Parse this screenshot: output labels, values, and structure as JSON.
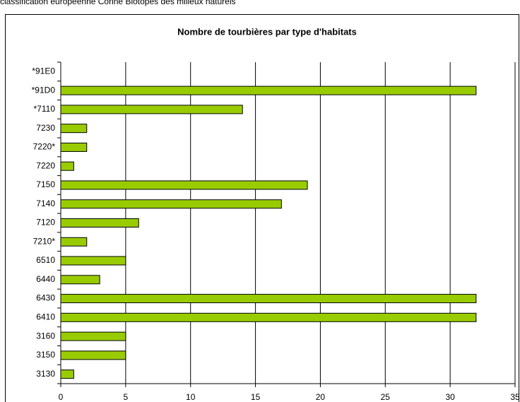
{
  "caption": "classification européenne Corine Biotopes des milieux naturels",
  "chart_data": {
    "type": "bar",
    "orientation": "horizontal",
    "title": "Nombre de tourbières par type d'habitats",
    "categories": [
      "*91E0",
      "*91D0",
      "*7110",
      "7230",
      "7220*",
      "7220",
      "7150",
      "7140",
      "7120",
      "7210*",
      "6510",
      "6440",
      "6430",
      "6410",
      "3160",
      "3150",
      "3130"
    ],
    "values": [
      0,
      32,
      14,
      2,
      2,
      1,
      19,
      17,
      6,
      2,
      5,
      3,
      32,
      32,
      5,
      5,
      1
    ],
    "color": "#99cc00",
    "xlim": [
      0,
      35
    ],
    "xticks": [
      0,
      5,
      10,
      15,
      20,
      25,
      30,
      35
    ],
    "grid": true
  }
}
